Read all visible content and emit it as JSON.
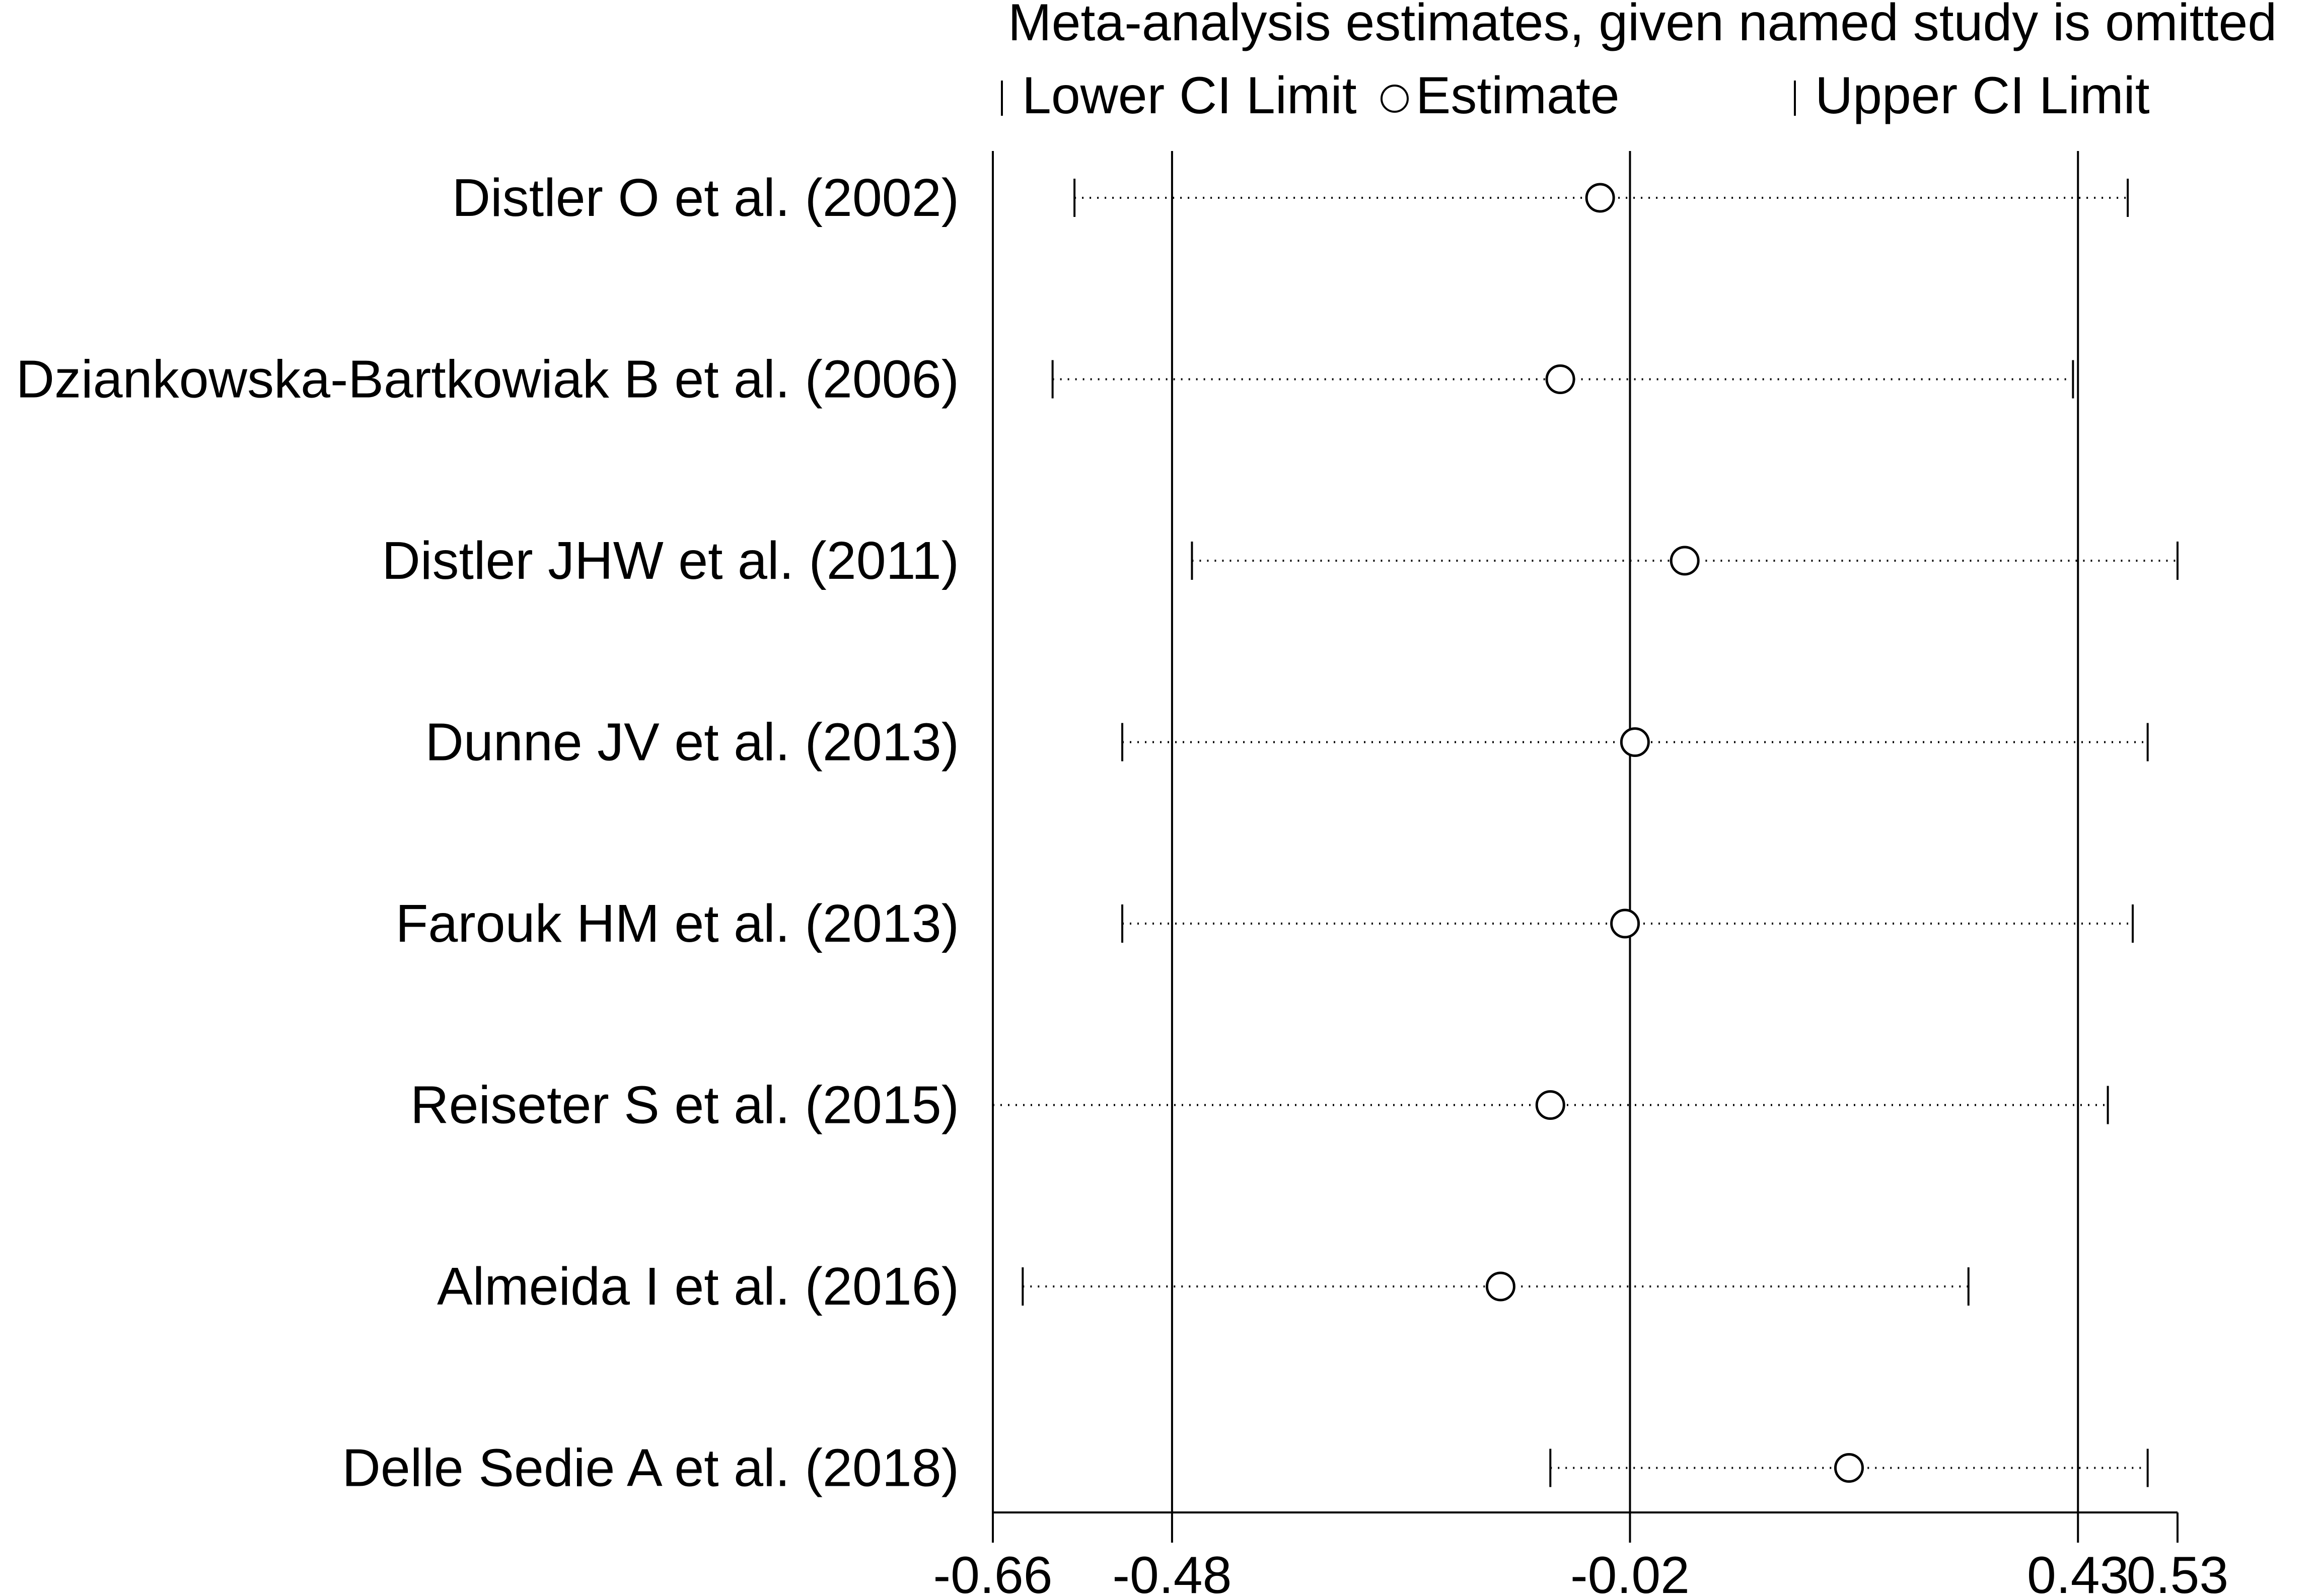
{
  "chart_data": {
    "type": "scatter",
    "title": "Meta-analysis estimates, given named study is omitted",
    "legend": {
      "lower_label": "Lower CI Limit",
      "estimate_label": "Estimate",
      "upper_label": "Upper CI Limit",
      "placement": "top"
    },
    "xlim": [
      -0.66,
      0.53
    ],
    "x_ticks": [
      {
        "value": -0.66,
        "label": "-0.66"
      },
      {
        "value": -0.48,
        "label": "-0.48"
      },
      {
        "value": -0.02,
        "label": "-0.02"
      },
      {
        "value": 0.43,
        "label": "0.43"
      },
      {
        "value": 0.53,
        "label": "0.53"
      }
    ],
    "reference_lines": [
      -0.48,
      -0.02,
      0.43
    ],
    "studies": [
      {
        "label": "Distler O et al. (2002)",
        "lower": -0.578,
        "estimate": -0.05,
        "upper": 0.48
      },
      {
        "label": "Dziankowska-Bartkowiak B et al. (2006)",
        "lower": -0.6,
        "estimate": -0.09,
        "upper": 0.425
      },
      {
        "label": "Distler JHW et al. (2011)",
        "lower": -0.46,
        "estimate": 0.035,
        "upper": 0.53
      },
      {
        "label": "Dunne JV et al. (2013)",
        "lower": -0.53,
        "estimate": -0.015,
        "upper": 0.5
      },
      {
        "label": "Farouk HM et al. (2013)",
        "lower": -0.53,
        "estimate": -0.025,
        "upper": 0.485
      },
      {
        "label": "Reiseter S et al. (2015)",
        "lower": -0.66,
        "estimate": -0.1,
        "upper": 0.46
      },
      {
        "label": "Almeida I et al. (2016)",
        "lower": -0.63,
        "estimate": -0.15,
        "upper": 0.32
      },
      {
        "label": "Delle Sedie A et al.  (2018)",
        "lower": -0.1,
        "estimate": 0.2,
        "upper": 0.5
      }
    ]
  }
}
